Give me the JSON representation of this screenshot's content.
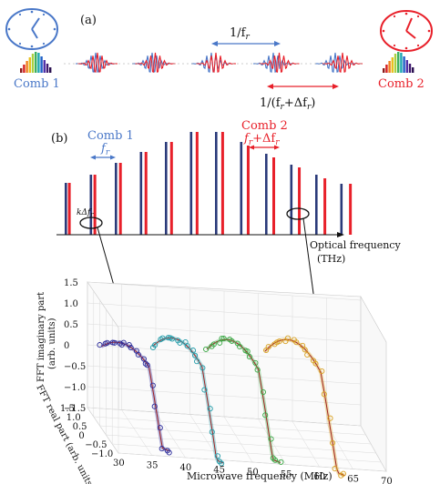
{
  "panel_a": {
    "label": "(a)",
    "comb1_label": "Comb 1",
    "comb2_label": "Comb 2",
    "period_label": "1/f",
    "period_sub": "r",
    "period2_label": "1/(f",
    "period2_sub": "r",
    "period2_tail": "+Δf",
    "period2_tail_sub": "r",
    "period2_close": ")",
    "colors": {
      "comb1": "#4a78c8",
      "comb2": "#e8202a"
    }
  },
  "panel_b": {
    "label": "(b)",
    "comb1_label": "Comb 1",
    "comb1_freq": "f",
    "comb1_freq_sub": "r",
    "comb2_label": "Comb 2",
    "comb2_freq": "f",
    "comb2_freq_sub": "r",
    "comb2_freq_tail": "+Δf",
    "comb2_freq_tail_sub": "r",
    "delta_label": "kΔf",
    "delta_sub": "r",
    "x_axis_label": "Optical frequency",
    "x_axis_unit": "(THz)",
    "bar_heights_comb1": [
      0.57,
      0.66,
      0.79,
      0.91,
      1.02,
      1.13,
      1.13,
      1.02,
      0.89,
      0.77,
      0.66,
      0.56
    ],
    "bar_heights_comb2": [
      0.57,
      0.66,
      0.79,
      0.91,
      1.02,
      1.13,
      1.13,
      0.98,
      0.85,
      0.74,
      0.62,
      0.56
    ]
  },
  "panel_c": {
    "x_axis_label": "Microwave frequency (MHz)",
    "z_axis_label": "FFT imaginary part",
    "z_axis_unit": "(arb. units)",
    "y_axis_label": "FFT real part (arb. units)",
    "x_ticks": [
      "30",
      "35",
      "40",
      "45",
      "50",
      "55",
      "60",
      "65",
      "70"
    ],
    "z_ticks": [
      "1.5",
      "1.0",
      "0.5",
      "0",
      "−0.5",
      "−1.0",
      "−1.5"
    ],
    "y_ticks": [
      "1.5",
      "1.0",
      "0.5",
      "0",
      "−0.5",
      "−1.0"
    ],
    "traces": [
      {
        "name": "",
        "color": "#2a2a9a"
      },
      {
        "name": "",
        "color": "#1f9aa8"
      },
      {
        "name": "",
        "color": "#3aa844"
      },
      {
        "name": "",
        "color": "#d8a020"
      }
    ]
  }
}
